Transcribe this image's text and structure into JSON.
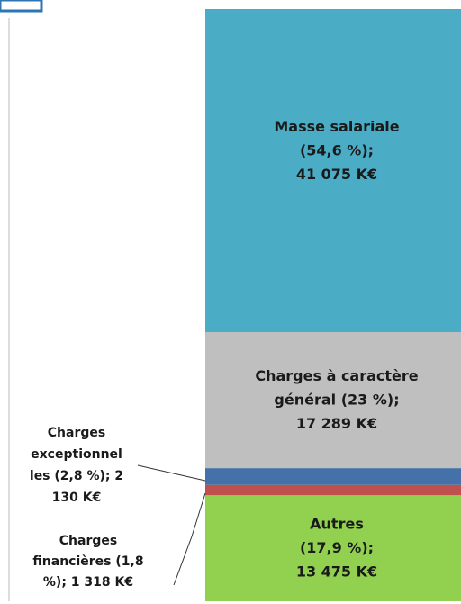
{
  "chart_data": {
    "type": "bar",
    "stacked": true,
    "series": [
      {
        "name": "Autres",
        "color": "#92d050",
        "values": [
          13475
        ],
        "value_labels": [
          "Autres\n(17,9 %);\n13 475 K€"
        ]
      },
      {
        "name": "Charges financières",
        "color": "#c0504d",
        "values": [
          1318
        ],
        "value_labels": [
          "Charges\nfinancières (1,8\n%); 1 318 K€"
        ]
      },
      {
        "name": "Charges exceptionnelles",
        "color": "#4472a8",
        "values": [
          2130
        ],
        "value_labels": [
          "Charges\nexceptionnel\nles (2,8 %); 2\n130 K€"
        ]
      },
      {
        "name": "Charges à caractère général",
        "color": "#bfbfbf",
        "values": [
          17289
        ],
        "value_labels": [
          "Charges à caractère\ngénéral (23 %);\n17 289 K€"
        ]
      },
      {
        "name": "Masse salariale",
        "color": "#4bacc6",
        "values": [
          41075
        ],
        "value_labels": [
          "Masse salariale\n(54,6 %);\n41 075 K€"
        ]
      }
    ]
  }
}
